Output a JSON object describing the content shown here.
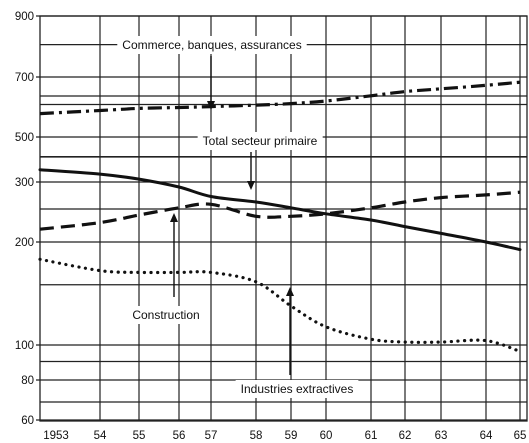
{
  "chart_data": {
    "type": "line",
    "title": "",
    "xlabel": "",
    "ylabel": "",
    "x": [
      1953,
      1954,
      1955,
      1956,
      1957,
      1958,
      1959,
      1960,
      1961,
      1962,
      1963,
      1964,
      1965
    ],
    "x_tick_labels": [
      "1953",
      "54",
      "55",
      "56",
      "57",
      "58",
      "59",
      "60",
      "61",
      "62",
      "63",
      "64",
      "65"
    ],
    "y_ticks": [
      60,
      80,
      100,
      200,
      300,
      500,
      700,
      900
    ],
    "y_tick_labels": [
      "60",
      "80",
      "100",
      "200",
      "300",
      "500",
      "700",
      "900"
    ],
    "y_scale": "log",
    "ylim": [
      60,
      900
    ],
    "xlim": [
      1953,
      1965
    ],
    "grid": true,
    "legend": "none",
    "series": [
      {
        "name": "Commerce, banques, assurances",
        "style": "dash-dot",
        "values": [
          570,
          580,
          587,
          590,
          593,
          598,
          603,
          612,
          630,
          645,
          655,
          668,
          680
        ]
      },
      {
        "name": "Total secteur primaire",
        "style": "solid",
        "values": [
          345,
          328,
          310,
          290,
          272,
          262,
          252,
          242,
          232,
          222,
          212,
          200,
          190
        ]
      },
      {
        "name": "Construction",
        "style": "dashed",
        "values": [
          218,
          228,
          240,
          252,
          258,
          238,
          238,
          242,
          252,
          262,
          270,
          275,
          280
        ]
      },
      {
        "name": "Industries extractives",
        "style": "dotted",
        "values": [
          178,
          165,
          163,
          163,
          163,
          153,
          130,
          113,
          104,
          102,
          102,
          103,
          96
        ]
      }
    ],
    "annotations": [
      {
        "text": "Commerce, banques, assurances",
        "series": "Commerce, banques, assurances"
      },
      {
        "text": "Total secteur primaire",
        "series": "Total secteur primaire"
      },
      {
        "text": "Construction",
        "series": "Construction"
      },
      {
        "text": "Industries extractives",
        "series": "Industries extractives"
      }
    ]
  }
}
